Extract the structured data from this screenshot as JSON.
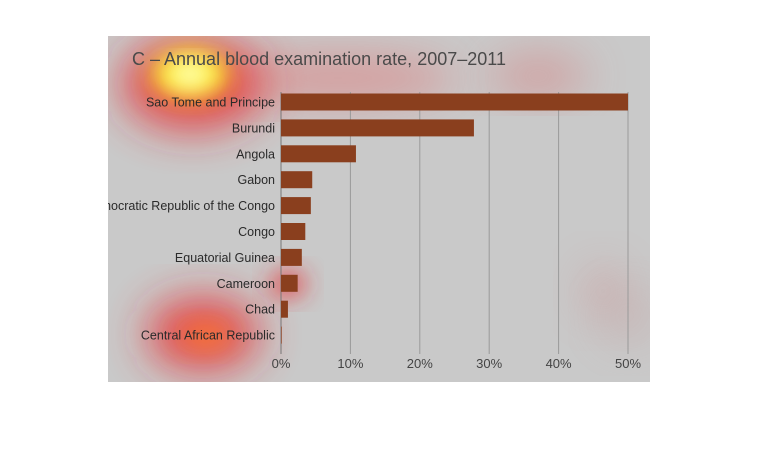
{
  "chart_data": {
    "type": "bar",
    "orientation": "horizontal",
    "title": "C – Annual blood examination rate, 2007–2011",
    "categories": [
      "Sao Tome and Principe",
      "Burundi",
      "Angola",
      "Gabon",
      "Democratic Republic of the Congo",
      "Congo",
      "Equatorial Guinea",
      "Cameroon",
      "Chad",
      "Central African Republic"
    ],
    "values": [
      50.0,
      27.8,
      10.8,
      4.5,
      4.3,
      3.5,
      3.0,
      2.4,
      1.0,
      0.1
    ],
    "xticks": [
      "0%",
      "10%",
      "20%",
      "30%",
      "40%",
      "50%"
    ],
    "xlim": [
      0,
      50
    ],
    "grid": true,
    "bar_color": "#8a3f1e",
    "overlay": "attention heatmap"
  }
}
